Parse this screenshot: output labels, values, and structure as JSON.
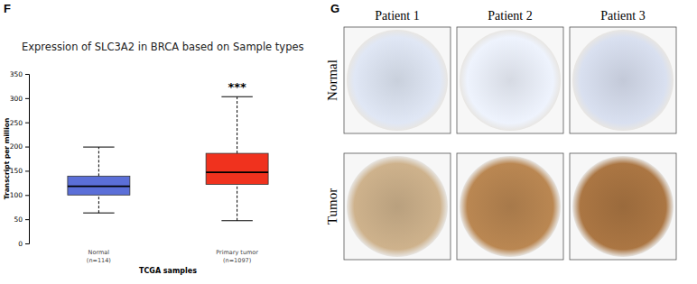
{
  "chart_data": {
    "type": "box",
    "title": "Expression of SLC3A2 in BRCA based on Sample types",
    "y_label": "Transcript per million",
    "x_label": "TCGA samples",
    "categories": [
      "Normal",
      "Primary tumor"
    ],
    "sample_labels": [
      "(n=114)",
      "(n=1097)"
    ],
    "colors": [
      "#5b6fd8",
      "#f0321e"
    ],
    "whisker_low": [
      63,
      47
    ],
    "q1": [
      100,
      122
    ],
    "median": [
      118,
      147
    ],
    "q3": [
      139,
      186
    ],
    "whisker_high": [
      199,
      303
    ],
    "annotations": [
      {
        "text": "***",
        "category": "Primary tumor"
      }
    ],
    "ylim": [
      0,
      350
    ],
    "yticks": [
      0,
      50,
      100,
      150,
      200,
      250,
      300,
      350
    ],
    "grid": false
  },
  "panel_labels": [
    "F",
    "G"
  ],
  "tissue_grid": {
    "columns": [
      "Patient 1",
      "Patient 2",
      "Patient 3"
    ],
    "rows": [
      "Normal",
      "Tumor"
    ]
  }
}
